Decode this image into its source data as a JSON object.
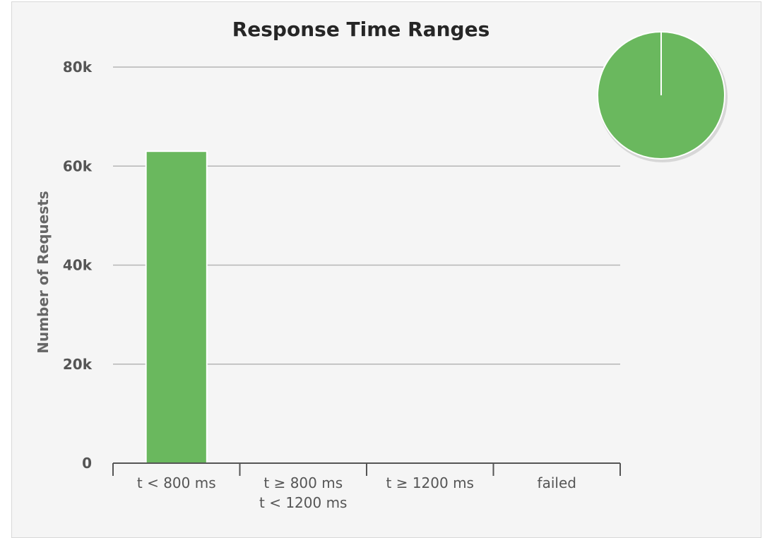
{
  "chart_data": {
    "type": "bar",
    "title": "Response Time Ranges",
    "xlabel": "",
    "ylabel": "Number of Requests",
    "categories": [
      [
        "t < 800 ms"
      ],
      [
        "t ≥ 800 ms",
        "t < 1200 ms"
      ],
      [
        "t ≥ 1200 ms"
      ],
      [
        "failed"
      ]
    ],
    "values": [
      63000,
      0,
      0,
      0
    ],
    "ylim": [
      0,
      80000
    ],
    "yticks": [
      {
        "value": 0,
        "label": "0"
      },
      {
        "value": 20000,
        "label": "20k"
      },
      {
        "value": 40000,
        "label": "40k"
      },
      {
        "value": 60000,
        "label": "60k"
      },
      {
        "value": 80000,
        "label": "80k"
      }
    ],
    "grid": true,
    "legend": "none",
    "colors": {
      "bar": "#6ab85e",
      "bar_outline": "#ffffff",
      "grid": "#b5b5b5",
      "axis": "#555555",
      "background": "#f5f5f5"
    },
    "inset_pie": {
      "type": "pie",
      "placement": "top-right",
      "slices": [
        {
          "category": "t < 800 ms",
          "value": 63000,
          "color": "#6ab85e"
        }
      ]
    }
  }
}
